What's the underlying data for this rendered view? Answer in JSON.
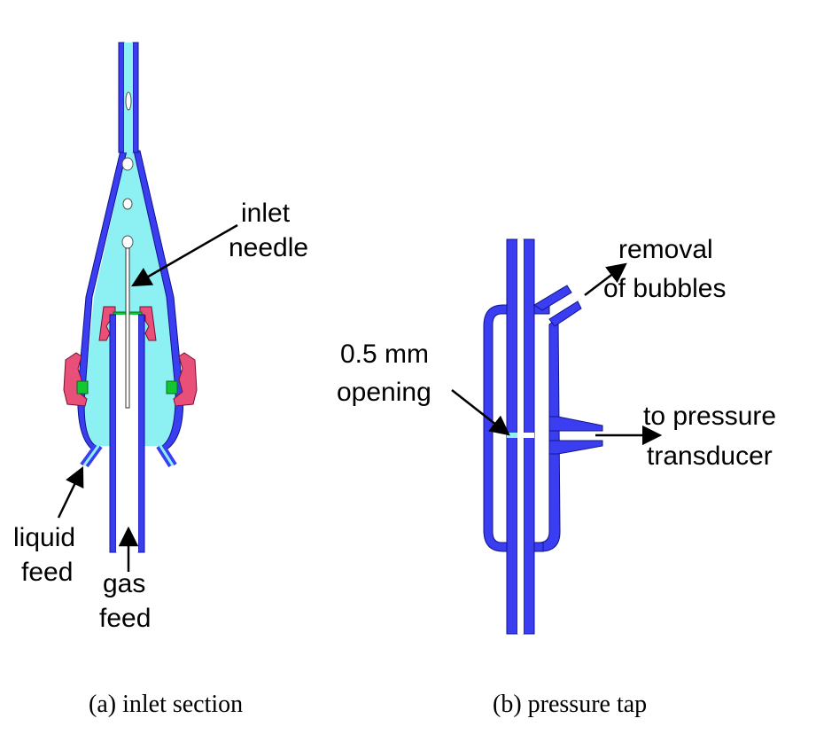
{
  "colors": {
    "wall": "#3a3ef0",
    "wall_edge": "#10148a",
    "liquid": "#8df0f2",
    "fitting": "#e8507a",
    "fitting_edge": "#7a1030",
    "seal": "#12c832",
    "arrow": "#000000"
  },
  "panel_a": {
    "labels": {
      "inlet": "inlet",
      "needle": "needle",
      "liquid": "liquid",
      "feed_liquid": "feed",
      "gas": "gas",
      "feed_gas": "feed"
    },
    "caption": "(a) inlet section"
  },
  "panel_b": {
    "labels": {
      "removal": "removal",
      "of_bubbles": "of bubbles",
      "opening_size": "0.5 mm",
      "opening": "opening",
      "to_pressure": "to pressure",
      "transducer": "transducer"
    },
    "caption": "(b) pressure tap"
  }
}
